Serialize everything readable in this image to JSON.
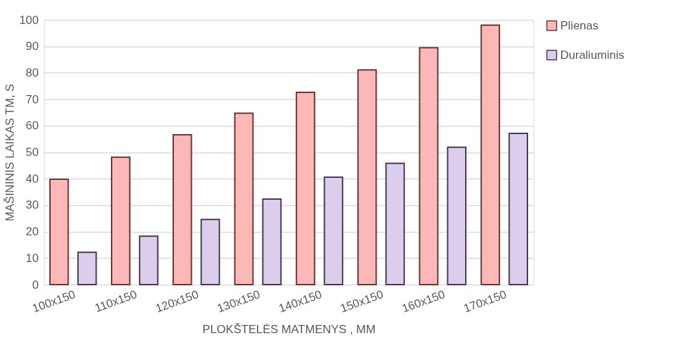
{
  "chart_data": {
    "type": "bar",
    "xlabel": "PLOKŠTELĖS MATMENYS , MM",
    "ylabel": "MAŠININIS LAIKAS TM, S",
    "categories": [
      "100x150",
      "110x150",
      "120x150",
      "130x150",
      "140x150",
      "150x150",
      "160x150",
      "170x150"
    ],
    "series": [
      {
        "name": "Plienas",
        "color": "#fcb8b6",
        "values": [
          39.8,
          48.1,
          56.6,
          64.7,
          72.6,
          81.1,
          89.5,
          98.0
        ]
      },
      {
        "name": "Duraliuminis",
        "color": "#dccdec",
        "values": [
          12.2,
          18.3,
          24.6,
          32.3,
          40.6,
          45.8,
          51.9,
          57.1
        ]
      }
    ],
    "ylim": [
      0,
      100
    ],
    "yticks": [
      0,
      10,
      20,
      30,
      40,
      50,
      60,
      70,
      80,
      90,
      100
    ],
    "grid": "y",
    "legend": "right"
  }
}
